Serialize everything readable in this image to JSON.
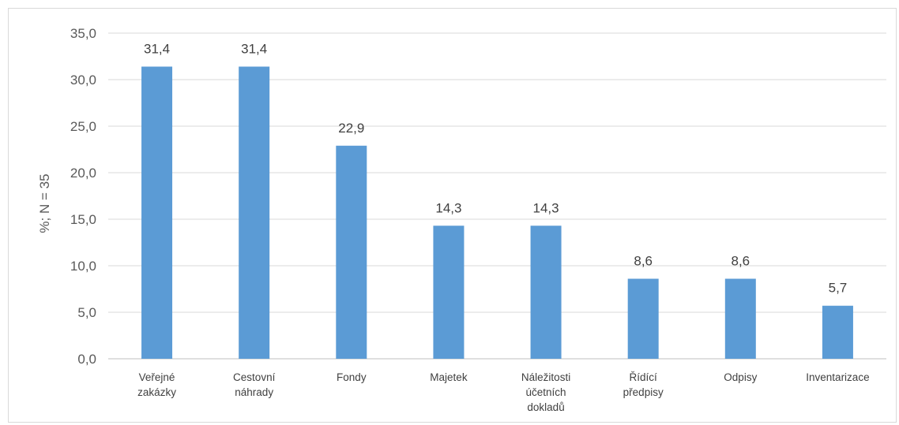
{
  "chart_data": {
    "type": "bar",
    "title": "",
    "xlabel": "",
    "ylabel": "%; N = 35",
    "categories": [
      "Veřejné zakázky",
      "Cestovní náhrady",
      "Fondy",
      "Majetek",
      "Náležitosti účetních dokladů",
      "Řídící předpisy",
      "Odpisy",
      "Inventarizace"
    ],
    "values": [
      31.4,
      31.4,
      22.9,
      14.3,
      14.3,
      8.6,
      8.6,
      5.7
    ],
    "data_labels": [
      "31,4",
      "31,4",
      "22,9",
      "14,3",
      "14,3",
      "8,6",
      "8,6",
      "5,7"
    ],
    "ylim": [
      0,
      35
    ],
    "yticks": [
      "0,0",
      "5,0",
      "10,0",
      "15,0",
      "20,0",
      "25,0",
      "30,0",
      "35,0"
    ],
    "grid": true,
    "legend": "none",
    "colors": {
      "bar": "#5b9bd5",
      "grid": "#d9d9d9",
      "axis": "#bfbfbf"
    }
  }
}
